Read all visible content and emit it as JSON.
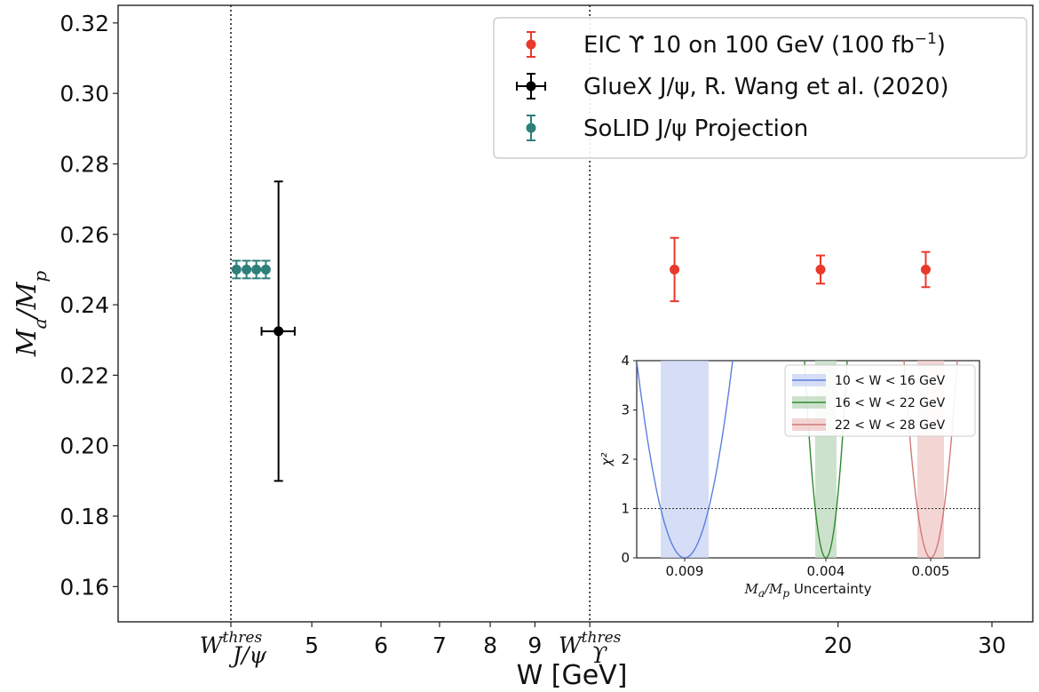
{
  "chart_data": {
    "type": "scatter",
    "xlabel": "W [GeV]",
    "ylabel": "M_a/M_p",
    "ylim": [
      0.15,
      0.325
    ],
    "x_scale": "log",
    "yticks": [
      "0.16",
      "0.18",
      "0.20",
      "0.22",
      "0.24",
      "0.26",
      "0.28",
      "0.30",
      "0.32"
    ],
    "xticks": [
      {
        "value": 4.04,
        "label": "W",
        "sup": "thres",
        "sub": "J/ψ"
      },
      {
        "value": 5,
        "label": "5"
      },
      {
        "value": 6,
        "label": "6"
      },
      {
        "value": 7,
        "label": "7"
      },
      {
        "value": 8,
        "label": "8"
      },
      {
        "value": 9,
        "label": "9"
      },
      {
        "value": 10.4,
        "label": "W",
        "sup": "thres",
        "sub": "ϒ"
      },
      {
        "value": 20,
        "label": "20"
      },
      {
        "value": 30,
        "label": "30"
      }
    ],
    "threshold_lines": [
      4.04,
      10.4
    ],
    "series": [
      {
        "name": "EIC ϒ 10 on 100 GeV (100 fb",
        "name_sup": "−1",
        "name_suffix": ")",
        "color": "#e8392b",
        "points": [
          {
            "x": 13,
            "y": 0.25,
            "yerr": 0.009
          },
          {
            "x": 19.1,
            "y": 0.25,
            "yerr": 0.004
          },
          {
            "x": 25.2,
            "y": 0.25,
            "yerr": 0.005
          }
        ]
      },
      {
        "name": "GlueX J/ψ, R. Wang et al. (2020)",
        "color": "#000000",
        "points": [
          {
            "x": 4.58,
            "y": 0.2325,
            "yerr_low": 0.0425,
            "yerr_high": 0.0425,
            "xerr": 0.2
          }
        ]
      },
      {
        "name": "SoLID J/ψ Projection",
        "color": "#2e7f7a",
        "points": [
          {
            "x": 4.1,
            "y": 0.25,
            "yerr": 0.0025
          },
          {
            "x": 4.21,
            "y": 0.25,
            "yerr": 0.0025
          },
          {
            "x": 4.32,
            "y": 0.25,
            "yerr": 0.0025
          },
          {
            "x": 4.43,
            "y": 0.25,
            "yerr": 0.0025
          }
        ]
      }
    ],
    "legend_placement": "top-right",
    "inset": {
      "ylabel": "χ²",
      "xlabel": "M_a/M_p Uncertainty",
      "ylim": [
        0,
        4
      ],
      "yticks": [
        "0",
        "1",
        "2",
        "3",
        "4"
      ],
      "xtick_labels": [
        "0.009",
        "0.004",
        "0.005"
      ],
      "reference_line": 1,
      "curves": [
        {
          "name": "10 < W < 16 GeV",
          "color": "#5b7fe0",
          "band_color": "#c7d3f3"
        },
        {
          "name": "16 < W < 22 GeV",
          "color": "#2e8a2e",
          "band_color": "#bcd8bc"
        },
        {
          "name": "22 < W < 28 GeV",
          "color": "#d07a78",
          "band_color": "#efc7c6"
        }
      ]
    }
  }
}
